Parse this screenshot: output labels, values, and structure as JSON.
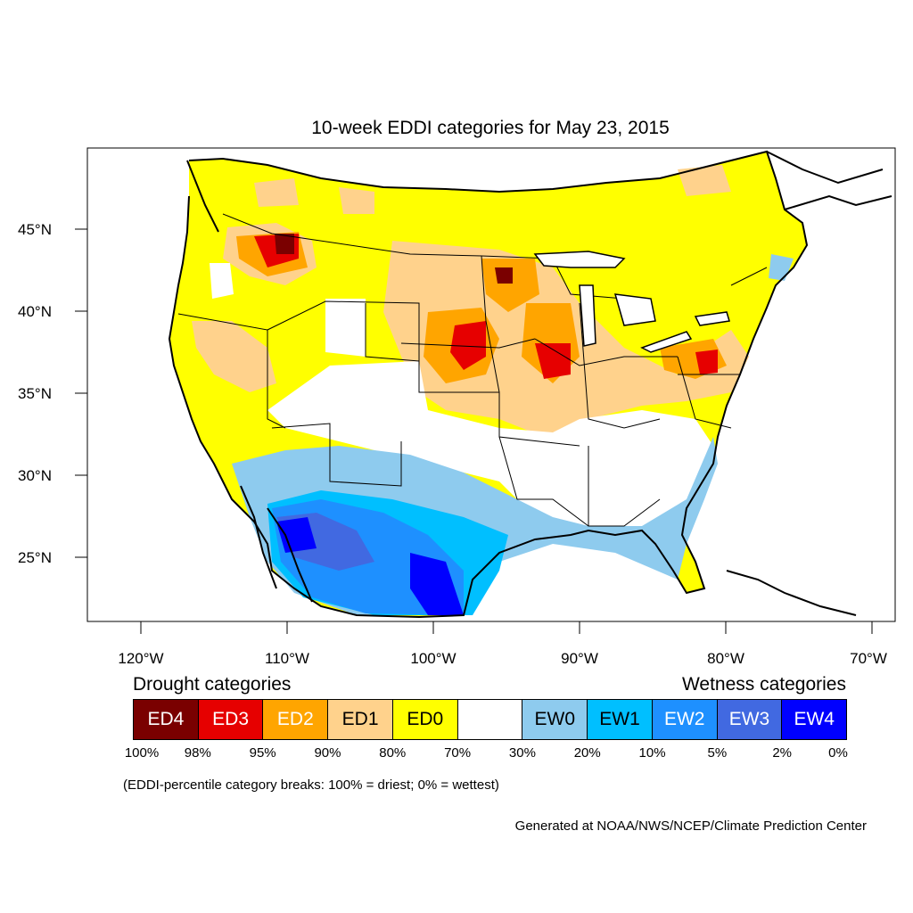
{
  "title": "10-week EDDI categories for May 23, 2015",
  "lat_labels": [
    "45°N",
    "40°N",
    "35°N",
    "30°N",
    "25°N"
  ],
  "lon_labels": [
    "120°W",
    "110°W",
    "100°W",
    "90°W",
    "80°W",
    "70°W"
  ],
  "legend": {
    "drought_title": "Drought categories",
    "wetness_title": "Wetness categories",
    "categories": [
      {
        "label": "ED4",
        "color": "#7a0000",
        "text_color": "#ffffff"
      },
      {
        "label": "ED3",
        "color": "#e60000",
        "text_color": "#ffffff"
      },
      {
        "label": "ED2",
        "color": "#ffa500",
        "text_color": "#ffffff"
      },
      {
        "label": "ED1",
        "color": "#ffd28c",
        "text_color": "#000000"
      },
      {
        "label": "ED0",
        "color": "#ffff00",
        "text_color": "#000000"
      },
      {
        "label": "",
        "color": "#ffffff",
        "text_color": "#000000"
      },
      {
        "label": "EW0",
        "color": "#8ecbee",
        "text_color": "#000000"
      },
      {
        "label": "EW1",
        "color": "#00bfff",
        "text_color": "#000000"
      },
      {
        "label": "EW2",
        "color": "#1e90ff",
        "text_color": "#ffffff"
      },
      {
        "label": "EW3",
        "color": "#4169e1",
        "text_color": "#ffffff"
      },
      {
        "label": "EW4",
        "color": "#0000ff",
        "text_color": "#ffffff"
      }
    ],
    "percentiles": [
      "100%",
      "98%",
      "95%",
      "90%",
      "80%",
      "70%",
      "30%",
      "20%",
      "10%",
      "5%",
      "2%",
      "0%"
    ]
  },
  "note": "(EDDI-percentile category breaks: 100% = driest; 0% = wettest)",
  "credit": "Generated at NOAA/NWS/NCEP/Climate Prediction Center"
}
